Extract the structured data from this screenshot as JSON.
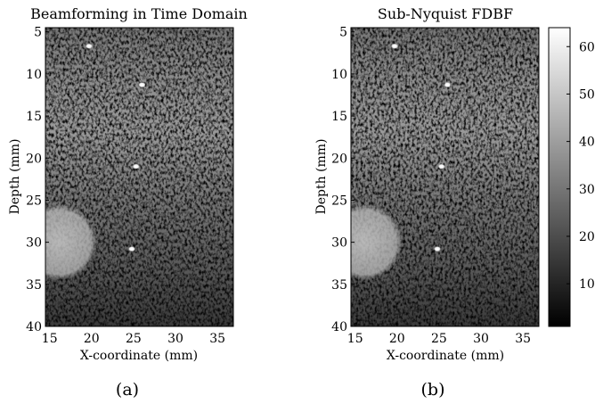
{
  "panels": [
    {
      "title": "Beamforming in Time Domain",
      "caption": "(a)",
      "xlabel": "X-coordinate (mm)",
      "ylabel": "Depth (mm)",
      "xticks": [
        "15",
        "20",
        "25",
        "30",
        "35"
      ],
      "yticks": [
        "5",
        "10",
        "15",
        "20",
        "25",
        "30",
        "35",
        "40"
      ]
    },
    {
      "title": "Sub-Nyquist FDBF",
      "caption": "(b)",
      "xlabel": "X-coordinate (mm)",
      "ylabel": "Depth (mm)",
      "xticks": [
        "15",
        "20",
        "25",
        "30",
        "35"
      ],
      "yticks": [
        "5",
        "10",
        "15",
        "20",
        "25",
        "30",
        "35",
        "40"
      ]
    }
  ],
  "colorbar": {
    "ticks": [
      "10",
      "20",
      "30",
      "40",
      "50",
      "60"
    ],
    "range": [
      1,
      64
    ],
    "colormap": "gray"
  },
  "chart_data": [
    {
      "type": "heatmap",
      "title": "Beamforming in Time Domain",
      "xlabel": "X-coordinate (mm)",
      "ylabel": "Depth (mm)",
      "xlim": [
        14.5,
        36.9
      ],
      "ylim": [
        40,
        4.5
      ],
      "colormap": "gray",
      "clim": [
        1,
        64
      ],
      "features": [
        {
          "kind": "point-scatterer",
          "x": 19.7,
          "y": 6.7
        },
        {
          "kind": "point-scatterer",
          "x": 26.0,
          "y": 11.3
        },
        {
          "kind": "point-scatterer",
          "x": 25.3,
          "y": 21.0
        },
        {
          "kind": "point-scatterer",
          "x": 24.8,
          "y": 30.8
        },
        {
          "kind": "hyperechoic-cyst",
          "x": 16.1,
          "y": 30.0,
          "radius": 4.5
        }
      ]
    },
    {
      "type": "heatmap",
      "title": "Sub-Nyquist FDBF",
      "xlabel": "X-coordinate (mm)",
      "ylabel": "Depth (mm)",
      "xlim": [
        14.5,
        36.9
      ],
      "ylim": [
        40,
        4.5
      ],
      "colormap": "gray",
      "clim": [
        1,
        64
      ],
      "features": [
        {
          "kind": "point-scatterer",
          "x": 19.7,
          "y": 6.7
        },
        {
          "kind": "point-scatterer",
          "x": 26.0,
          "y": 11.3
        },
        {
          "kind": "point-scatterer",
          "x": 25.3,
          "y": 21.0
        },
        {
          "kind": "point-scatterer",
          "x": 24.8,
          "y": 30.8
        },
        {
          "kind": "hyperechoic-cyst",
          "x": 16.1,
          "y": 30.0,
          "radius": 4.5
        }
      ]
    }
  ]
}
